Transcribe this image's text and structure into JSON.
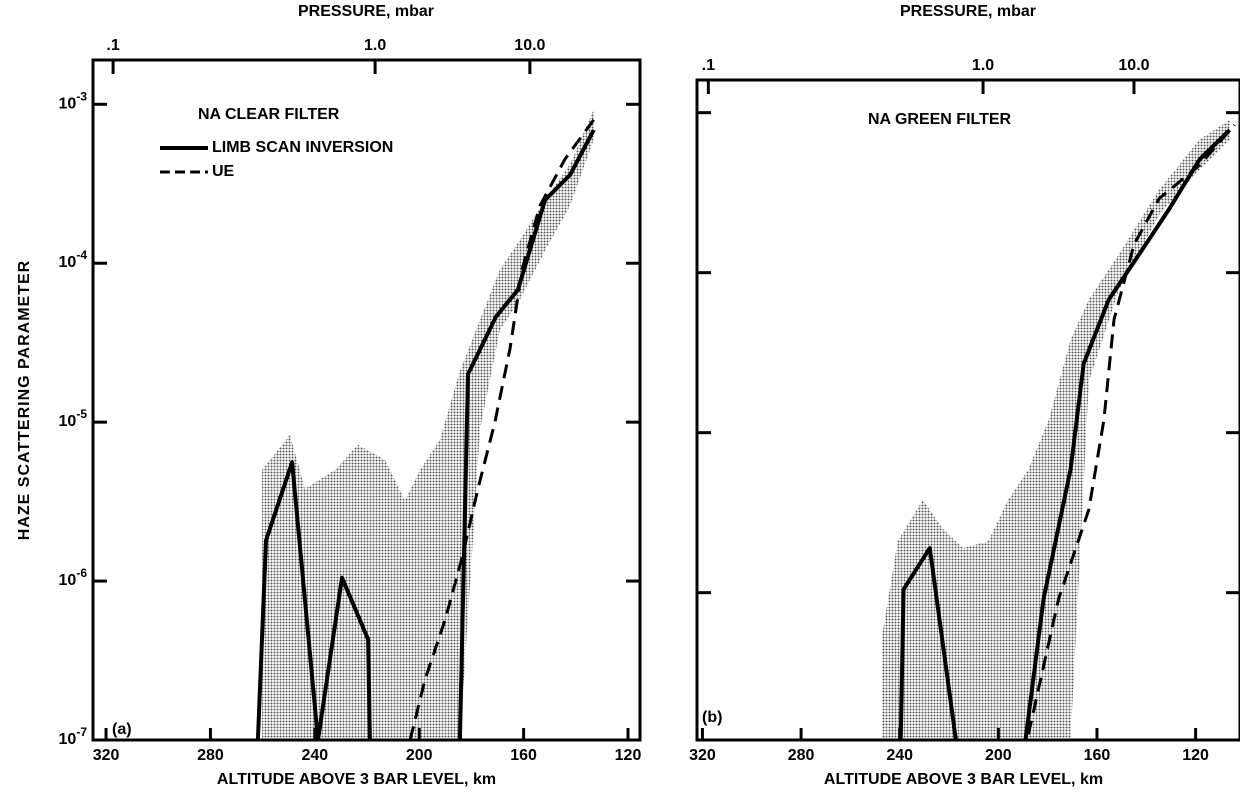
{
  "chart_data": [
    {
      "type": "line",
      "title": "NA CLEAR FILTER",
      "panel_label": "(a)",
      "xlabel": "ALTITUDE ABOVE 3 BAR LEVEL, km",
      "x2label": "PRESSURE, mbar",
      "ylabel": "HAZE SCATTERING PARAMETER",
      "xlim": [
        325,
        115.4
      ],
      "xticks": [
        320,
        280,
        240,
        200,
        160,
        120
      ],
      "ylim": [
        1e-07,
        0.0019
      ],
      "log_y": true,
      "yticks": [
        {
          "value": 1e-07,
          "label": "10-7"
        },
        {
          "value": 1e-06,
          "label": "10-6"
        },
        {
          "value": 1e-05,
          "label": "10-5"
        },
        {
          "value": 0.0001,
          "label": "10-4"
        },
        {
          "value": 0.001,
          "label": "10-3"
        }
      ],
      "pressure_ticks": [
        {
          "value": 0.1,
          "label": ".1",
          "altitude": 317.3
        },
        {
          "value": 1,
          "label": "1.0",
          "altitude": 216.9
        },
        {
          "value": 10,
          "label": "10.0",
          "altitude": 157.6
        }
      ],
      "band": {
        "color": "#555555",
        "x": [
          260.2,
          249.5,
          243.8,
          232.3,
          223.5,
          213.1,
          205.5,
          199.7,
          192.0,
          184.4,
          176.7,
          169.1,
          161.4,
          151.8,
          142.2,
          133.1
        ],
        "lower": [
          1e-07,
          1e-07,
          1e-07,
          1e-07,
          1e-07,
          1e-07,
          1e-07,
          1e-07,
          1e-07,
          1e-07,
          9e-06,
          3.8e-05,
          5.9e-05,
          0.00012,
          0.00023,
          0.0006
        ],
        "upper": [
          5e-06,
          8.3e-06,
          3.8e-06,
          5e-06,
          7.2e-06,
          5.8e-06,
          3.2e-06,
          5e-06,
          7.8e-06,
          2.1e-05,
          4.4e-05,
          9.1e-05,
          0.00014,
          0.00025,
          0.00042,
          0.00093
        ]
      },
      "series": [
        {
          "name": "LIMB SCAN INVERSION",
          "color": "#000000",
          "dash": false,
          "x": [
            261.8,
            258.7,
            248.7,
            238.8,
            229.6,
            219.6,
            218.9,
            null,
            184.4,
            181.3,
            170.6,
            162.2,
            151.8,
            142.2,
            133.1
          ],
          "values": [
            1e-07,
            1.8e-06,
            5.6e-06,
            1e-07,
            1.05e-06,
            4.3e-07,
            1e-07,
            null,
            1e-07,
            2e-05,
            4.6e-05,
            6.8e-05,
            0.00025,
            0.00036,
            0.00069
          ]
        },
        {
          "name": "UE",
          "color": "#000000",
          "dash": true,
          "x": [
            203.5,
            197.8,
            190.1,
            183.6,
            177.5,
            171.0,
            165.2,
            160.6,
            153.7,
            144.2,
            133.1
          ],
          "values": [
            1e-07,
            2.4e-07,
            5.7e-07,
            1.4e-06,
            3.8e-06,
            1e-05,
            2.9e-05,
            9.1e-05,
            0.00023,
            0.00045,
            0.0008
          ]
        }
      ]
    },
    {
      "type": "line",
      "title": "NA GREEN FILTER",
      "panel_label": "(b)",
      "xlabel": "ALTITUDE ABOVE 3 BAR LEVEL, km",
      "x2label": "PRESSURE, mbar",
      "xlim": [
        322.2,
        102
      ],
      "xticks": [
        320,
        280,
        240,
        200,
        160,
        120
      ],
      "ylim": [
        1.2e-07,
        0.0016
      ],
      "log_y": true,
      "yticks": [
        1e-06,
        1e-05,
        0.0001,
        0.001
      ],
      "pressure_ticks": [
        {
          "value": 0.1,
          "label": ".1",
          "altitude": 317.6
        },
        {
          "value": 1,
          "label": "1.0",
          "altitude": 206.2
        },
        {
          "value": 10,
          "label": "10.0",
          "altitude": 145.0
        }
      ],
      "band": {
        "color": "#555555",
        "x": [
          247.4,
          240.8,
          230.6,
          222.5,
          214.3,
          204.1,
          196.0,
          187.8,
          179.6,
          170.7,
          163.3,
          151.1,
          134.8,
          118.4,
          106.2
        ],
        "lower": [
          1.2e-07,
          1.2e-07,
          1.2e-07,
          1.2e-07,
          1.2e-07,
          1.2e-07,
          1.2e-07,
          1.2e-07,
          1.2e-07,
          1.2e-07,
          2.1e-05,
          7.8e-05,
          0.00023,
          0.00044,
          0.00068
        ],
        "upper": [
          5.1e-07,
          2.1e-06,
          3.8e-06,
          2.5e-06,
          1.9e-06,
          2.1e-06,
          3.8e-06,
          5.9e-06,
          1.2e-05,
          3.8e-05,
          6.8e-05,
          0.00013,
          0.00033,
          0.00068,
          0.0009
        ]
      },
      "series": [
        {
          "color": "#000000",
          "dash": false,
          "x": [
            239.6,
            238.4,
            227.8,
            217.2,
            null,
            189.0,
            181.7,
            170.7,
            165.4,
            155.2,
            142.9,
            130.7,
            118.4,
            106.2
          ],
          "values": [
            1.2e-07,
            1.05e-06,
            1.9e-06,
            1.2e-07,
            null,
            1.2e-07,
            9.1e-07,
            5.9e-06,
            2.7e-05,
            6.8e-05,
            0.00013,
            0.00025,
            0.00051,
            0.00078
          ]
        },
        {
          "color": "#000000",
          "dash": true,
          "x": [
            187.8,
            175.6,
            163.3,
            157.2,
            153.1,
            145.0,
            134.8,
            118.4,
            104.2
          ],
          "values": [
            1.3e-07,
            9.1e-07,
            3.3e-06,
            1.2e-05,
            5.1e-05,
            0.00015,
            0.00029,
            0.00047,
            0.00084
          ]
        }
      ]
    }
  ]
}
